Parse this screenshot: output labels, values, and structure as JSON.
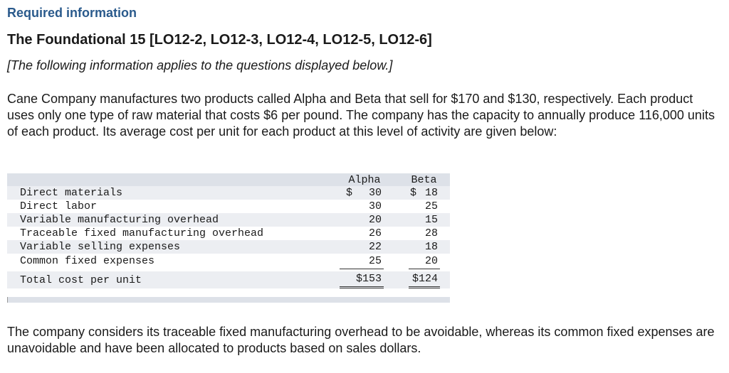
{
  "header": {
    "required_info": "Required information",
    "title": "The Foundational 15 [LO12-2, LO12-3, LO12-4, LO12-5, LO12-6]",
    "subtitle": "[The following information applies to the questions displayed below.]"
  },
  "intro": "Cane Company manufactures two products called Alpha and Beta that sell for $170 and $130, respectively. Each product uses only one type of raw material that costs $6 per pound. The company has the capacity to annually produce 116,000 units of each product. Its average cost per unit for each product at this level of activity are given below:",
  "table": {
    "col_alpha": "Alpha",
    "col_beta": "Beta",
    "rows": [
      {
        "label": "Direct materials",
        "alpha": "30",
        "beta": "18"
      },
      {
        "label": "Direct labor",
        "alpha": "30",
        "beta": "25"
      },
      {
        "label": "Variable manufacturing overhead",
        "alpha": "20",
        "beta": "15"
      },
      {
        "label": "Traceable fixed manufacturing overhead",
        "alpha": "26",
        "beta": "28"
      },
      {
        "label": "Variable selling expenses",
        "alpha": "22",
        "beta": "18"
      },
      {
        "label": "Common fixed expenses",
        "alpha": "25",
        "beta": "20"
      }
    ],
    "total": {
      "label": "Total cost per unit",
      "alpha": "$153",
      "beta": "$124"
    },
    "dollar_sign": "$"
  },
  "closing": "The company considers its traceable fixed manufacturing overhead to be avoidable, whereas its common fixed expenses are unavoidable and have been allocated to products based on sales dollars."
}
